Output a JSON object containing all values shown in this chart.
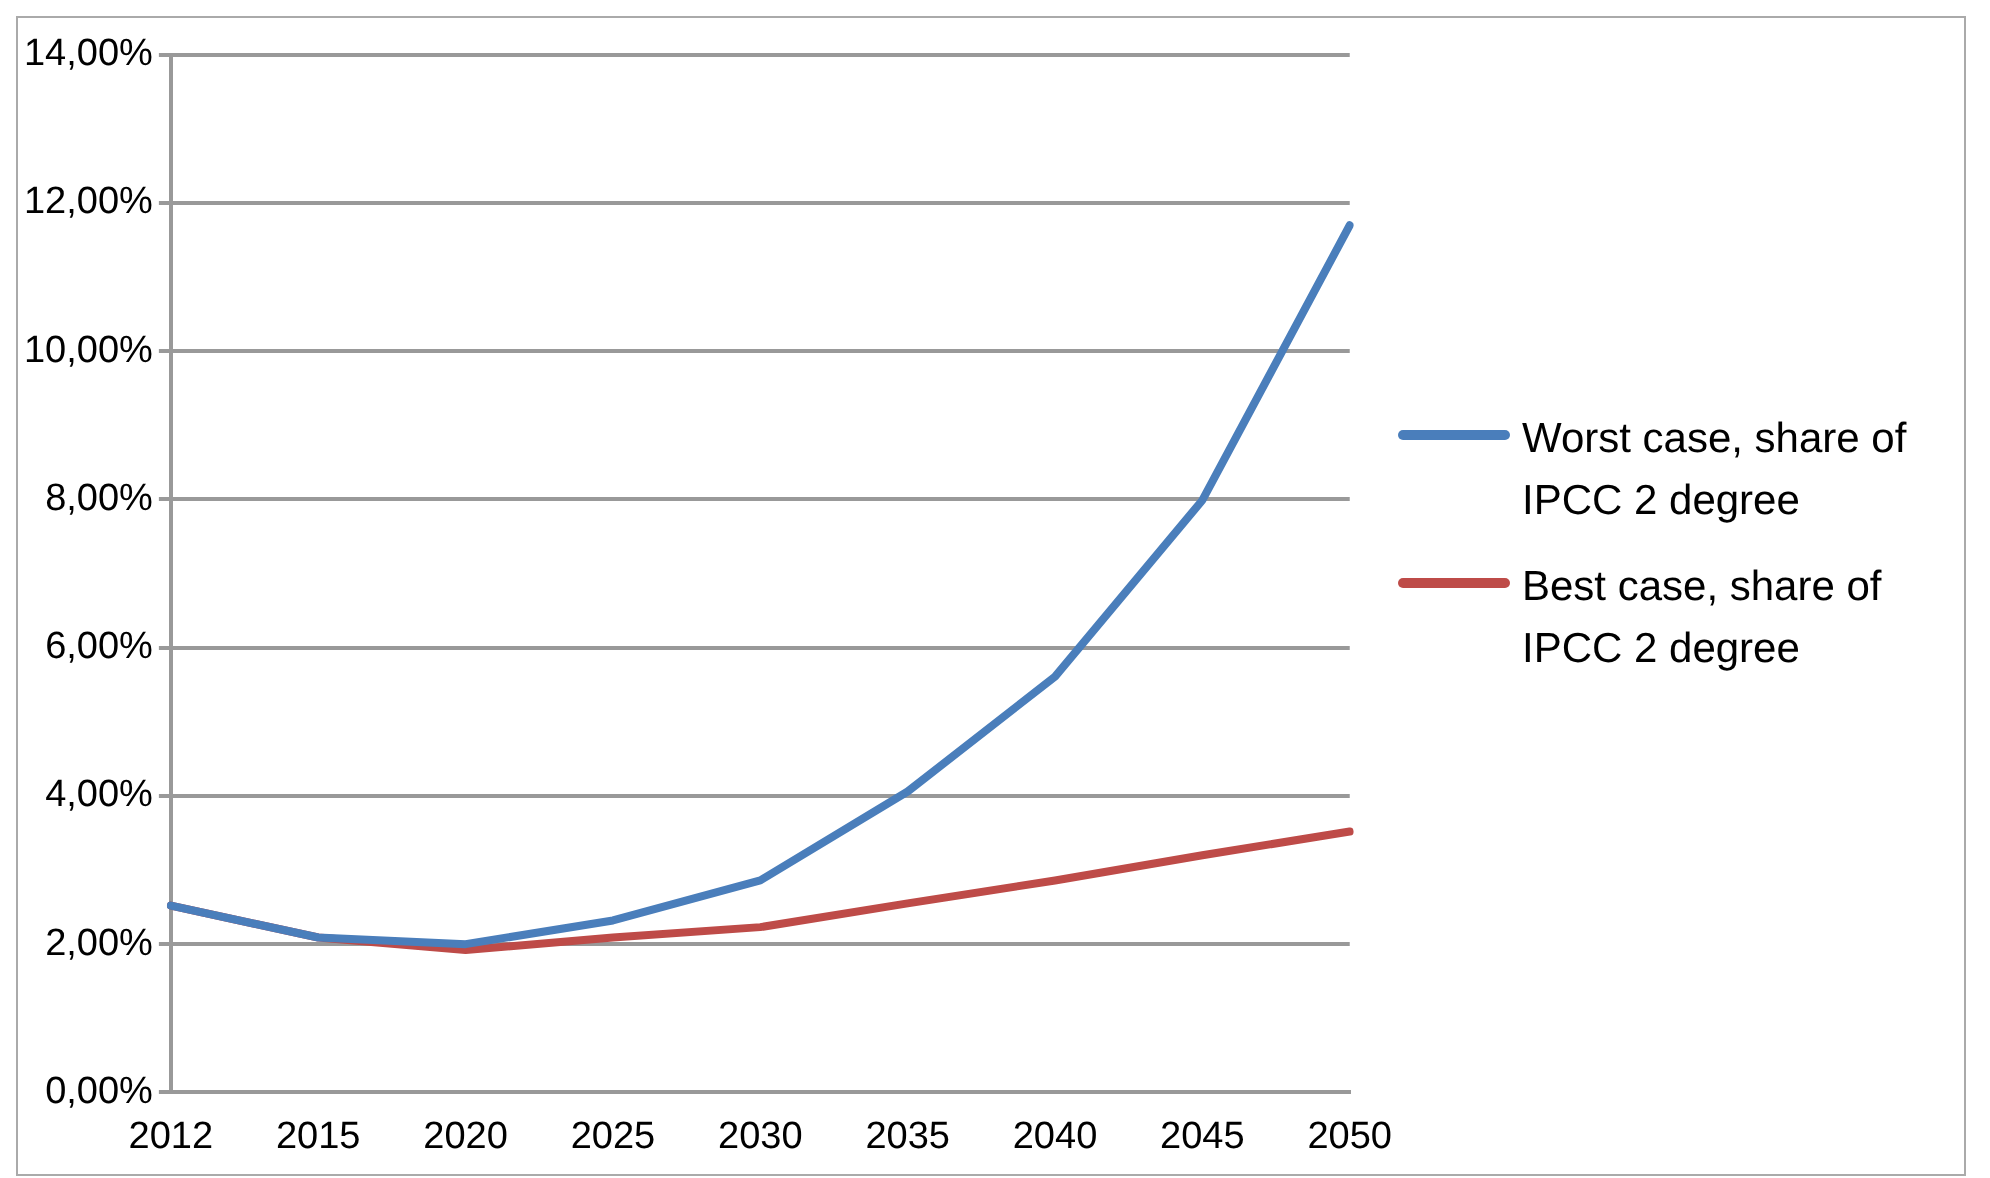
{
  "chart_data": {
    "type": "line",
    "categories": [
      "2012",
      "2015",
      "2020",
      "2025",
      "2030",
      "2035",
      "2040",
      "2045",
      "2050"
    ],
    "series": [
      {
        "name": "Worst case, share of IPCC 2 degree",
        "color": "#4a7ebb",
        "values": [
          2.52,
          2.09,
          2.0,
          2.32,
          2.86,
          4.06,
          5.61,
          7.99,
          11.7
        ]
      },
      {
        "name": "Best case, share of IPCC 2 degree",
        "color": "#be4b48",
        "values": [
          2.52,
          2.09,
          1.92,
          2.09,
          2.23,
          2.55,
          2.86,
          3.2,
          3.52
        ]
      }
    ],
    "ylim": [
      0,
      14
    ],
    "yticks": [
      {
        "value": 0,
        "label": "0,00%"
      },
      {
        "value": 2,
        "label": "2,00%"
      },
      {
        "value": 4,
        "label": "4,00%"
      },
      {
        "value": 6,
        "label": "6,00%"
      },
      {
        "value": 8,
        "label": "8,00%"
      },
      {
        "value": 10,
        "label": "10,00%"
      },
      {
        "value": 12,
        "label": "12,00%"
      },
      {
        "value": 14,
        "label": "14,00%"
      }
    ],
    "grid": "y",
    "legend": "right",
    "marker": "none",
    "line_style": "solid"
  }
}
